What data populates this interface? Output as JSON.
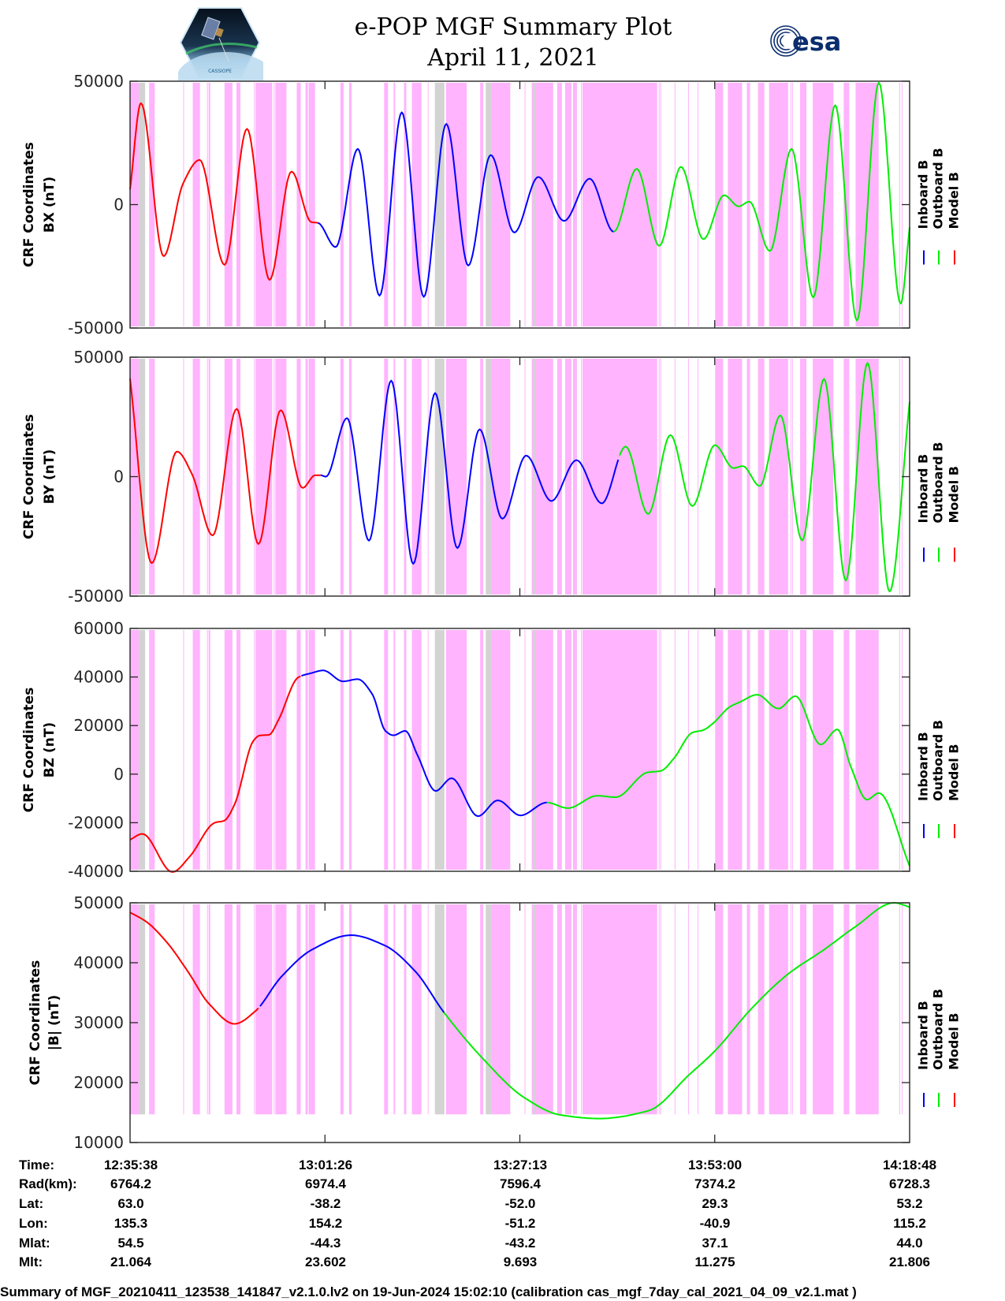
{
  "header": {
    "title": "e-POP MGF Summary Plot",
    "date": "April 11, 2021",
    "logo_left_text": "CASSIOPE",
    "logo_right_text": "esa"
  },
  "legend": [
    {
      "label": "Inboard B",
      "color": "#0000ff"
    },
    {
      "label": "Outboard B",
      "color": "#00ee00"
    },
    {
      "label": "Model B",
      "color": "#ff0000"
    }
  ],
  "colors": {
    "pink_band": "#ffb4fd",
    "gray_band": "#d3d3d3",
    "axis": "#262626"
  },
  "shading": {
    "x_unit": "minutes since 12:35:38",
    "pink_intervals": [
      [
        0,
        1.16
      ],
      [
        2.52,
        3.26
      ],
      [
        7.04,
        7.14
      ],
      [
        8.3,
        9.25
      ],
      [
        10.19,
        10.3
      ],
      [
        10.4,
        10.61
      ],
      [
        12.5,
        13.55
      ],
      [
        14.08,
        14.6
      ],
      [
        16.39,
        16.49
      ],
      [
        16.6,
        18.81
      ],
      [
        19.02,
        19.12
      ],
      [
        19.23,
        20.7
      ],
      [
        22.06,
        22.59
      ],
      [
        23.22,
        23.53
      ],
      [
        23.64,
        24.48
      ],
      [
        27.84,
        28.26
      ],
      [
        29.0,
        29.31
      ],
      [
        33.62,
        34.14
      ],
      [
        34.88,
        35.09
      ],
      [
        36.25,
        36.56
      ],
      [
        37.3,
        38.56
      ],
      [
        39.4,
        39.5
      ],
      [
        41.81,
        44.55
      ],
      [
        46.33,
        46.75
      ],
      [
        47.8,
        50.32
      ],
      [
        52.21,
        52.32
      ],
      [
        53.16,
        56.0
      ],
      [
        56.52,
        57.15
      ],
      [
        57.57,
        58.41
      ],
      [
        58.62,
        59.15
      ],
      [
        59.67,
        59.78
      ],
      [
        59.88,
        69.76
      ],
      [
        69.97,
        70.08
      ],
      [
        70.18,
        70.29
      ],
      [
        72.07,
        72.18
      ],
      [
        73.86,
        73.96
      ],
      [
        75.12,
        75.22
      ],
      [
        77.43,
        78.48
      ],
      [
        79.11,
        81.0
      ],
      [
        81.63,
        82.05
      ],
      [
        83.1,
        83.94
      ],
      [
        84.57,
        87.09
      ],
      [
        87.41,
        87.51
      ],
      [
        87.62,
        87.72
      ],
      [
        88.67,
        89.51
      ],
      [
        90.35,
        93.08
      ],
      [
        94.45,
        95.18
      ],
      [
        96.02,
        99.07
      ],
      [
        101.8,
        101.91
      ],
      [
        102.12,
        102.22
      ]
    ],
    "gray_intervals": [
      [
        1.16,
        1.99
      ],
      [
        40.34,
        41.6
      ],
      [
        47.07,
        47.8
      ],
      [
        53.37,
        53.69
      ]
    ]
  },
  "chart_data": [
    {
      "type": "line",
      "ylabel": [
        "CRF Coordinates",
        "BX (nT)"
      ],
      "xlim": [
        0,
        103.17
      ],
      "ylim": [
        -50000,
        50000
      ],
      "yticks": [
        50000,
        0,
        -50000
      ],
      "ytick_labels": [
        "50000",
        "0",
        "-50000"
      ],
      "band_floor": null,
      "visible_segments": [
        {
          "series": "Model B",
          "from": 0,
          "to": 24.87
        },
        {
          "series": "Inboard B",
          "from": 24.87,
          "to": 64.01
        },
        {
          "series": "Outboard B",
          "from": 64.01,
          "to": 103.17
        }
      ],
      "points": [
        [
          0,
          6200
        ],
        [
          1.44,
          41100
        ],
        [
          4.44,
          -20900
        ],
        [
          7.01,
          8500
        ],
        [
          9.21,
          18100
        ],
        [
          12.5,
          -24400
        ],
        [
          15.48,
          30700
        ],
        [
          18.46,
          -30500
        ],
        [
          21.36,
          13400
        ],
        [
          23.99,
          -7100
        ],
        [
          24.87,
          -7400
        ],
        [
          27.21,
          -17200
        ],
        [
          30.15,
          22600
        ],
        [
          33.02,
          -36900
        ],
        [
          35.96,
          37400
        ],
        [
          38.87,
          -37400
        ],
        [
          41.85,
          32700
        ],
        [
          44.76,
          -24700
        ],
        [
          47.73,
          20100
        ],
        [
          50.85,
          -11300
        ],
        [
          54.03,
          11200
        ],
        [
          57.44,
          -6600
        ],
        [
          60.83,
          10500
        ],
        [
          64.01,
          -11000
        ],
        [
          67.06,
          14500
        ],
        [
          70.04,
          -16700
        ],
        [
          72.91,
          15300
        ],
        [
          75.88,
          -14000
        ],
        [
          78.62,
          3800
        ],
        [
          80.55,
          -700
        ],
        [
          81.95,
          1200
        ],
        [
          84.68,
          -18800
        ],
        [
          87.55,
          22600
        ],
        [
          90.42,
          -37600
        ],
        [
          93.32,
          40300
        ],
        [
          96.2,
          -47000
        ],
        [
          99.1,
          49400
        ],
        [
          101.98,
          -40100
        ],
        [
          103.17,
          -9200
        ]
      ]
    },
    {
      "type": "line",
      "ylabel": [
        "CRF Coordinates",
        "BY (nT)"
      ],
      "xlim": [
        0,
        103.17
      ],
      "ylim": [
        -50000,
        50000
      ],
      "yticks": [
        50000,
        0,
        -50000
      ],
      "ytick_labels": [
        "50000",
        "0",
        "-50000"
      ],
      "band_floor": null,
      "visible_segments": [
        {
          "series": "Model B",
          "from": 0,
          "to": 25.21
        },
        {
          "series": "Inboard B",
          "from": 25.21,
          "to": 64.7
        },
        {
          "series": "Outboard B",
          "from": 64.7,
          "to": 103.17
        }
      ],
      "points": [
        [
          0,
          41100
        ],
        [
          2.87,
          -36200
        ],
        [
          6.2,
          10500
        ],
        [
          8.23,
          800
        ],
        [
          10.93,
          -24600
        ],
        [
          14.11,
          28400
        ],
        [
          16.99,
          -28200
        ],
        [
          19.93,
          27800
        ],
        [
          22.83,
          -4700
        ],
        [
          24.51,
          600
        ],
        [
          25.21,
          600
        ],
        [
          25.92,
          0
        ],
        [
          28.71,
          24500
        ],
        [
          31.62,
          -26800
        ],
        [
          34.56,
          40200
        ],
        [
          37.48,
          -36500
        ],
        [
          40.37,
          35000
        ],
        [
          43.32,
          -29900
        ],
        [
          46.26,
          19800
        ],
        [
          49.27,
          -17600
        ],
        [
          52.42,
          8800
        ],
        [
          55.76,
          -10200
        ],
        [
          59.08,
          6900
        ],
        [
          62.44,
          -11200
        ],
        [
          65.59,
          12600
        ],
        [
          68.57,
          -15600
        ],
        [
          71.51,
          17400
        ],
        [
          74.41,
          -12300
        ],
        [
          77.4,
          13200
        ],
        [
          79.85,
          3600
        ],
        [
          81.08,
          4400
        ],
        [
          83.34,
          -3900
        ],
        [
          86.07,
          25600
        ],
        [
          88.95,
          -26700
        ],
        [
          91.85,
          40900
        ],
        [
          94.73,
          -43500
        ],
        [
          97.6,
          47600
        ],
        [
          100.51,
          -48100
        ],
        [
          103.17,
          31300
        ]
      ]
    },
    {
      "type": "line",
      "ylabel": [
        "CRF Coordinates",
        "BZ (nT)"
      ],
      "xlim": [
        0,
        103.17
      ],
      "ylim": [
        -40000,
        60000
      ],
      "yticks": [
        60000,
        40000,
        20000,
        0,
        -20000,
        -40000
      ],
      "ytick_labels": [
        "60000",
        "40000",
        "20000",
        "0",
        "-20000",
        "-40000"
      ],
      "band_floor": null,
      "visible_segments": [
        {
          "series": "Model B",
          "from": 0,
          "to": 22.6
        },
        {
          "series": "Inboard B",
          "from": 22.6,
          "to": 55.16
        },
        {
          "series": "Outboard B",
          "from": 55.16,
          "to": 103.17
        }
      ],
      "points": [
        [
          0,
          -27000
        ],
        [
          1.62,
          -24600
        ],
        [
          5.6,
          -40300
        ],
        [
          7.88,
          -34000
        ],
        [
          11.21,
          -20000
        ],
        [
          12.43,
          -19200
        ],
        [
          13.84,
          -12400
        ],
        [
          16.28,
          13500
        ],
        [
          17.16,
          15900
        ],
        [
          18.39,
          16200
        ],
        [
          19.62,
          22200
        ],
        [
          22.24,
          39800
        ],
        [
          23.98,
          41600
        ],
        [
          25.56,
          42700
        ],
        [
          28.19,
          38200
        ],
        [
          30.12,
          39100
        ],
        [
          32.04,
          33000
        ],
        [
          33.8,
          17800
        ],
        [
          34.85,
          16000
        ],
        [
          36.42,
          17800
        ],
        [
          38.0,
          8100
        ],
        [
          40.45,
          -6900
        ],
        [
          42.55,
          -1700
        ],
        [
          46.05,
          -17300
        ],
        [
          48.67,
          -10800
        ],
        [
          51.66,
          -17000
        ],
        [
          55.16,
          -11700
        ],
        [
          57.96,
          -14000
        ],
        [
          61.81,
          -8900
        ],
        [
          64.27,
          -9500
        ],
        [
          68.47,
          700
        ],
        [
          70.21,
          1300
        ],
        [
          71.97,
          6500
        ],
        [
          74.41,
          17100
        ],
        [
          75.82,
          18100
        ],
        [
          77.22,
          21100
        ],
        [
          79.32,
          27600
        ],
        [
          80.72,
          29700
        ],
        [
          83.0,
          32700
        ],
        [
          85.8,
          27000
        ],
        [
          88.07,
          32100
        ],
        [
          91.4,
          12200
        ],
        [
          93.61,
          18400
        ],
        [
          95.43,
          2700
        ],
        [
          97.53,
          -10500
        ],
        [
          99.1,
          -7800
        ],
        [
          103.17,
          -37800
        ]
      ]
    },
    {
      "type": "line",
      "ylabel": [
        "CRF Coordinates",
        "|B| (nT)"
      ],
      "xlim": [
        0,
        103.17
      ],
      "ylim": [
        10000,
        50000
      ],
      "yticks": [
        50000,
        40000,
        30000,
        20000,
        10000
      ],
      "ytick_labels": [
        "50000",
        "40000",
        "30000",
        "20000",
        "10000"
      ],
      "band_floor": 14700,
      "visible_segments": [
        {
          "series": "Model B",
          "from": 0,
          "to": 17.2
        },
        {
          "series": "Inboard B",
          "from": 17.2,
          "to": 41.55
        },
        {
          "series": "Outboard B",
          "from": 41.55,
          "to": 103.17
        }
      ],
      "points": [
        [
          0,
          48400
        ],
        [
          2.2,
          46800
        ],
        [
          4.94,
          43300
        ],
        [
          7.67,
          38500
        ],
        [
          10.42,
          33200
        ],
        [
          13.83,
          29800
        ],
        [
          16.56,
          31900
        ],
        [
          19.98,
          37600
        ],
        [
          24.1,
          42200
        ],
        [
          29.23,
          44600
        ],
        [
          33.68,
          42900
        ],
        [
          37.79,
          38500
        ],
        [
          41.55,
          31700
        ],
        [
          46.69,
          24000
        ],
        [
          52.16,
          17500
        ],
        [
          56.95,
          14600
        ],
        [
          62.09,
          14000
        ],
        [
          68.59,
          15300
        ],
        [
          74.07,
          21400
        ],
        [
          77.49,
          25400
        ],
        [
          82.28,
          32400
        ],
        [
          87.07,
          38100
        ],
        [
          91.87,
          42200
        ],
        [
          95.98,
          46000
        ],
        [
          101.11,
          50000
        ],
        [
          103.17,
          49300
        ]
      ]
    }
  ],
  "ephemeris": {
    "rows": [
      {
        "label": "Time:",
        "values": [
          "12:35:38",
          "13:01:26",
          "13:27:13",
          "13:53:00",
          "14:18:48"
        ]
      },
      {
        "label": "Rad(km):",
        "values": [
          "6764.2",
          "6974.4",
          "7596.4",
          "7374.2",
          "6728.3"
        ]
      },
      {
        "label": "Lat:",
        "values": [
          "63.0",
          "-38.2",
          "-52.0",
          "29.3",
          "53.2"
        ]
      },
      {
        "label": "Lon:",
        "values": [
          "135.3",
          "154.2",
          "-51.2",
          "-40.9",
          "115.2"
        ]
      },
      {
        "label": "Mlat:",
        "values": [
          "54.5",
          "-44.3",
          "-43.2",
          "37.1",
          "44.0"
        ]
      },
      {
        "label": "Mlt:",
        "values": [
          "21.064",
          "23.602",
          "9.693",
          "11.275",
          "21.806"
        ]
      }
    ]
  },
  "footer": "Summary of MGF_20210411_123538_141847_v2.1.0.lv2 on 19-Jun-2024 15:02:10 (calibration cas_mgf_7day_cal_2021_04_09_v2.1.mat )"
}
